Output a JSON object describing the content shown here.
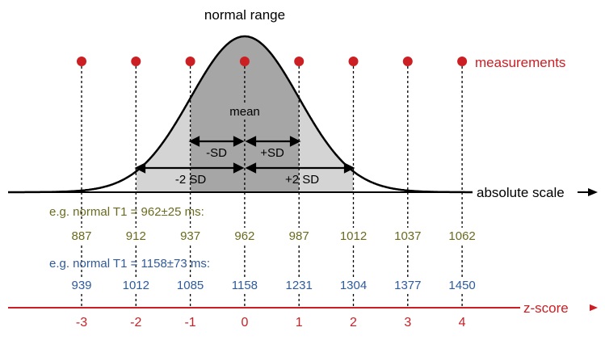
{
  "title": "normal range",
  "mean_label": "mean",
  "sd_minus_label": "-SD",
  "sd_plus_label": "+SD",
  "sd2_minus_label": "-2 SD",
  "sd2_plus_label": "+2 SD",
  "measurements_label": "measurements",
  "absolute_scale_label": "absolute scale",
  "zscore_label": "z-score",
  "example1": {
    "label": "e.g. normal T1 = 962±25 ms:",
    "values": [
      "887",
      "912",
      "937",
      "962",
      "987",
      "1012",
      "1037",
      "1062"
    ],
    "color": "#6b6b1e"
  },
  "example2": {
    "label": "e.g. normal T1 = 1158±73 ms:",
    "values": [
      "939",
      "1012",
      "1085",
      "1158",
      "1231",
      "1304",
      "1377",
      "1450"
    ],
    "color": "#2f5a9b"
  },
  "zscores": [
    "-3",
    "-2",
    "-1",
    "0",
    "1",
    "2",
    "3",
    "4"
  ],
  "colors": {
    "accent_red": "#cc1f24",
    "curve_outer_fill": "#d4d4d4",
    "curve_inner_fill": "#a6a6a6",
    "line": "#000000"
  }
}
